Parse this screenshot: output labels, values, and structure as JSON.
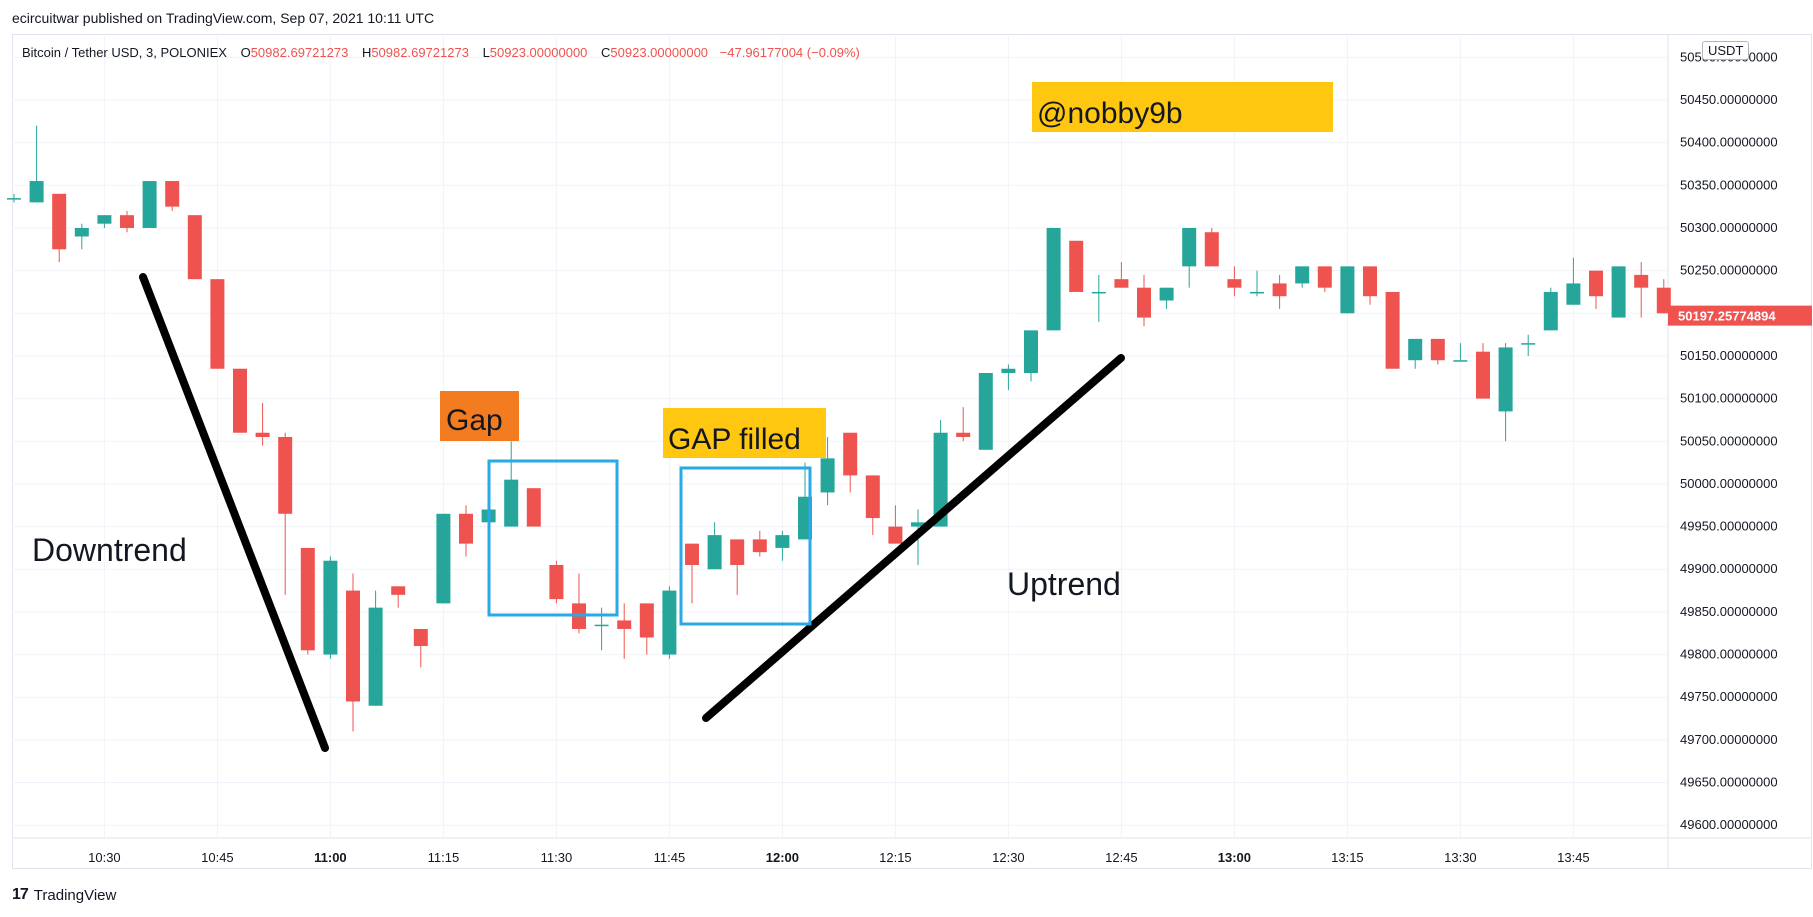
{
  "publisher_line": "ecircuitwar published on TradingView.com, Sep 07, 2021 10:11 UTC",
  "header": {
    "symbol": "Bitcoin / Tether USD, 3, POLONIEX",
    "o_label": "O",
    "o_value": "50982.69721273",
    "h_label": "H",
    "h_value": "50982.69721273",
    "l_label": "L",
    "l_value": "50923.00000000",
    "c_label": "C",
    "c_value": "50923.00000000",
    "change": "−47.96177004 (−0.09%)"
  },
  "unit_badge": "USDT",
  "last_price_label": "50197.25774894",
  "footer": {
    "logo": "17",
    "brand": "TradingView"
  },
  "colors": {
    "up": "#26a69a",
    "down": "#ef5350",
    "grid": "#f0f3fa",
    "box": "#29a9e6",
    "orange": "#f47c20",
    "yellow": "#ffc710"
  },
  "chart_data": {
    "type": "candlestick",
    "ylim": [
      49585,
      50525
    ],
    "yticks": [
      "49600.00000000",
      "49650.00000000",
      "49700.00000000",
      "49750.00000000",
      "49800.00000000",
      "49850.00000000",
      "49900.00000000",
      "49950.00000000",
      "50000.00000000",
      "50050.00000000",
      "50100.00000000",
      "50150.00000000",
      "50200.00000000",
      "50250.00000000",
      "50300.00000000",
      "50350.00000000",
      "50400.00000000",
      "50450.00000000",
      "50500.00000000"
    ],
    "xticks": [
      {
        "label": "10:30",
        "bold": false,
        "i": 4
      },
      {
        "label": "10:45",
        "bold": false,
        "i": 9
      },
      {
        "label": "11:00",
        "bold": true,
        "i": 14
      },
      {
        "label": "11:15",
        "bold": false,
        "i": 19
      },
      {
        "label": "11:30",
        "bold": false,
        "i": 24
      },
      {
        "label": "11:45",
        "bold": false,
        "i": 29
      },
      {
        "label": "12:00",
        "bold": true,
        "i": 34
      },
      {
        "label": "12:15",
        "bold": false,
        "i": 39
      },
      {
        "label": "12:30",
        "bold": false,
        "i": 44
      },
      {
        "label": "12:45",
        "bold": false,
        "i": 49
      },
      {
        "label": "13:00",
        "bold": true,
        "i": 54
      },
      {
        "label": "13:15",
        "bold": false,
        "i": 59
      },
      {
        "label": "13:30",
        "bold": false,
        "i": 64
      },
      {
        "label": "13:45",
        "bold": false,
        "i": 69
      }
    ],
    "candles": [
      [
        50335,
        50340,
        50330,
        50335
      ],
      [
        50330,
        50420,
        50330,
        50355
      ],
      [
        50340,
        50340,
        50260,
        50275
      ],
      [
        50290,
        50305,
        50275,
        50300
      ],
      [
        50305,
        50315,
        50300,
        50315
      ],
      [
        50315,
        50320,
        50295,
        50300
      ],
      [
        50300,
        50355,
        50300,
        50355
      ],
      [
        50355,
        50355,
        50320,
        50325
      ],
      [
        50315,
        50315,
        50240,
        50240
      ],
      [
        50240,
        50240,
        50135,
        50135
      ],
      [
        50135,
        50135,
        50060,
        50060
      ],
      [
        50060,
        50095,
        50045,
        50055
      ],
      [
        50055,
        50060,
        49870,
        49965
      ],
      [
        49925,
        49925,
        49800,
        49805
      ],
      [
        49800,
        49915,
        49795,
        49910
      ],
      [
        49875,
        49895,
        49710,
        49745
      ],
      [
        49740,
        49875,
        49740,
        49855
      ],
      [
        49880,
        49880,
        49855,
        49870
      ],
      [
        49830,
        49830,
        49785,
        49810
      ],
      [
        49860,
        49965,
        49860,
        49965
      ],
      [
        49965,
        49975,
        49915,
        49930
      ],
      [
        49955,
        49975,
        49955,
        49970
      ],
      [
        49950,
        50050,
        49950,
        50005
      ],
      [
        49995,
        49995,
        49950,
        49950
      ],
      [
        49905,
        49910,
        49860,
        49865
      ],
      [
        49860,
        49895,
        49825,
        49830
      ],
      [
        49835,
        49855,
        49805,
        49835
      ],
      [
        49840,
        49860,
        49795,
        49830
      ],
      [
        49860,
        49860,
        49800,
        49820
      ],
      [
        49800,
        49880,
        49795,
        49875
      ],
      [
        49930,
        49930,
        49860,
        49905
      ],
      [
        49900,
        49955,
        49900,
        49940
      ],
      [
        49935,
        49935,
        49870,
        49905
      ],
      [
        49935,
        49945,
        49915,
        49920
      ],
      [
        49925,
        49945,
        49910,
        49940
      ],
      [
        49935,
        50025,
        49935,
        49985
      ],
      [
        49990,
        50055,
        49975,
        50030
      ],
      [
        50060,
        50060,
        49990,
        50010
      ],
      [
        50010,
        50010,
        49940,
        49960
      ],
      [
        49950,
        49975,
        49935,
        49930
      ],
      [
        49950,
        49970,
        49905,
        49955
      ],
      [
        49950,
        50075,
        49950,
        50060
      ],
      [
        50060,
        50090,
        50050,
        50055
      ],
      [
        50040,
        50130,
        50040,
        50130
      ],
      [
        50130,
        50140,
        50110,
        50135
      ],
      [
        50130,
        50180,
        50120,
        50180
      ],
      [
        50180,
        50300,
        50180,
        50300
      ],
      [
        50285,
        50285,
        50230,
        50225
      ],
      [
        50225,
        50245,
        50190,
        50225
      ],
      [
        50240,
        50260,
        50230,
        50230
      ],
      [
        50230,
        50245,
        50185,
        50195
      ],
      [
        50215,
        50230,
        50205,
        50230
      ],
      [
        50255,
        50300,
        50230,
        50300
      ],
      [
        50295,
        50300,
        50255,
        50255
      ],
      [
        50240,
        50255,
        50220,
        50230
      ],
      [
        50225,
        50250,
        50220,
        50225
      ],
      [
        50235,
        50245,
        50205,
        50220
      ],
      [
        50235,
        50255,
        50230,
        50255
      ],
      [
        50255,
        50255,
        50225,
        50230
      ],
      [
        50200,
        50255,
        50200,
        50255
      ],
      [
        50255,
        50255,
        50210,
        50220
      ],
      [
        50225,
        50225,
        50140,
        50135
      ],
      [
        50145,
        50165,
        50135,
        50170
      ],
      [
        50170,
        50170,
        50140,
        50145
      ],
      [
        50145,
        50165,
        50145,
        50145
      ],
      [
        50155,
        50165,
        50100,
        50100
      ],
      [
        50085,
        50165,
        50050,
        50160
      ],
      [
        50165,
        50175,
        50150,
        50165
      ],
      [
        50180,
        50230,
        50180,
        50225
      ],
      [
        50210,
        50265,
        50210,
        50235
      ],
      [
        50250,
        50250,
        50205,
        50220
      ],
      [
        50195,
        50255,
        50195,
        50255
      ],
      [
        50245,
        50260,
        50195,
        50230
      ],
      [
        50230,
        50240,
        50200,
        50200
      ]
    ],
    "annotations": [
      {
        "kind": "text",
        "text": "Downtrend"
      },
      {
        "kind": "text",
        "text": "Uptrend"
      },
      {
        "kind": "label",
        "text": "Gap",
        "color": "orange"
      },
      {
        "kind": "label",
        "text": "GAP filled",
        "color": "yellow"
      },
      {
        "kind": "label",
        "text": "@nobby9b",
        "color": "yellow"
      }
    ]
  }
}
